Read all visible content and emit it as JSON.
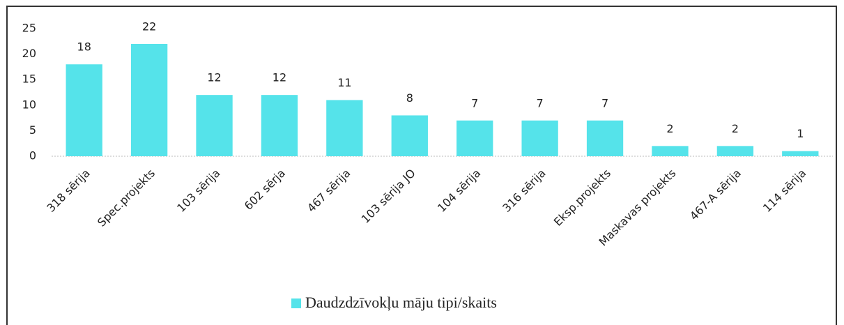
{
  "chart_data": {
    "type": "bar",
    "categories": [
      "318 sērija",
      "Spec.projekts",
      "103 sērija",
      "602 sērja",
      "467 sērija",
      "103 sērija JO",
      "104 sērija",
      "316 sērija",
      "Eksp.projekts",
      "Maskavas projekts",
      "467-A sērija",
      "114 sērija"
    ],
    "series": [
      {
        "name": "Daudzdzīvokļu māju tipi/skaits",
        "color": "#55e3ea",
        "values": [
          18,
          22,
          12,
          12,
          11,
          8,
          7,
          7,
          7,
          2,
          2,
          1
        ]
      }
    ],
    "ylim": [
      0,
      25
    ],
    "yticks": [
      0,
      5,
      10,
      15,
      20,
      25
    ],
    "grid": false,
    "legend": "bottom"
  }
}
